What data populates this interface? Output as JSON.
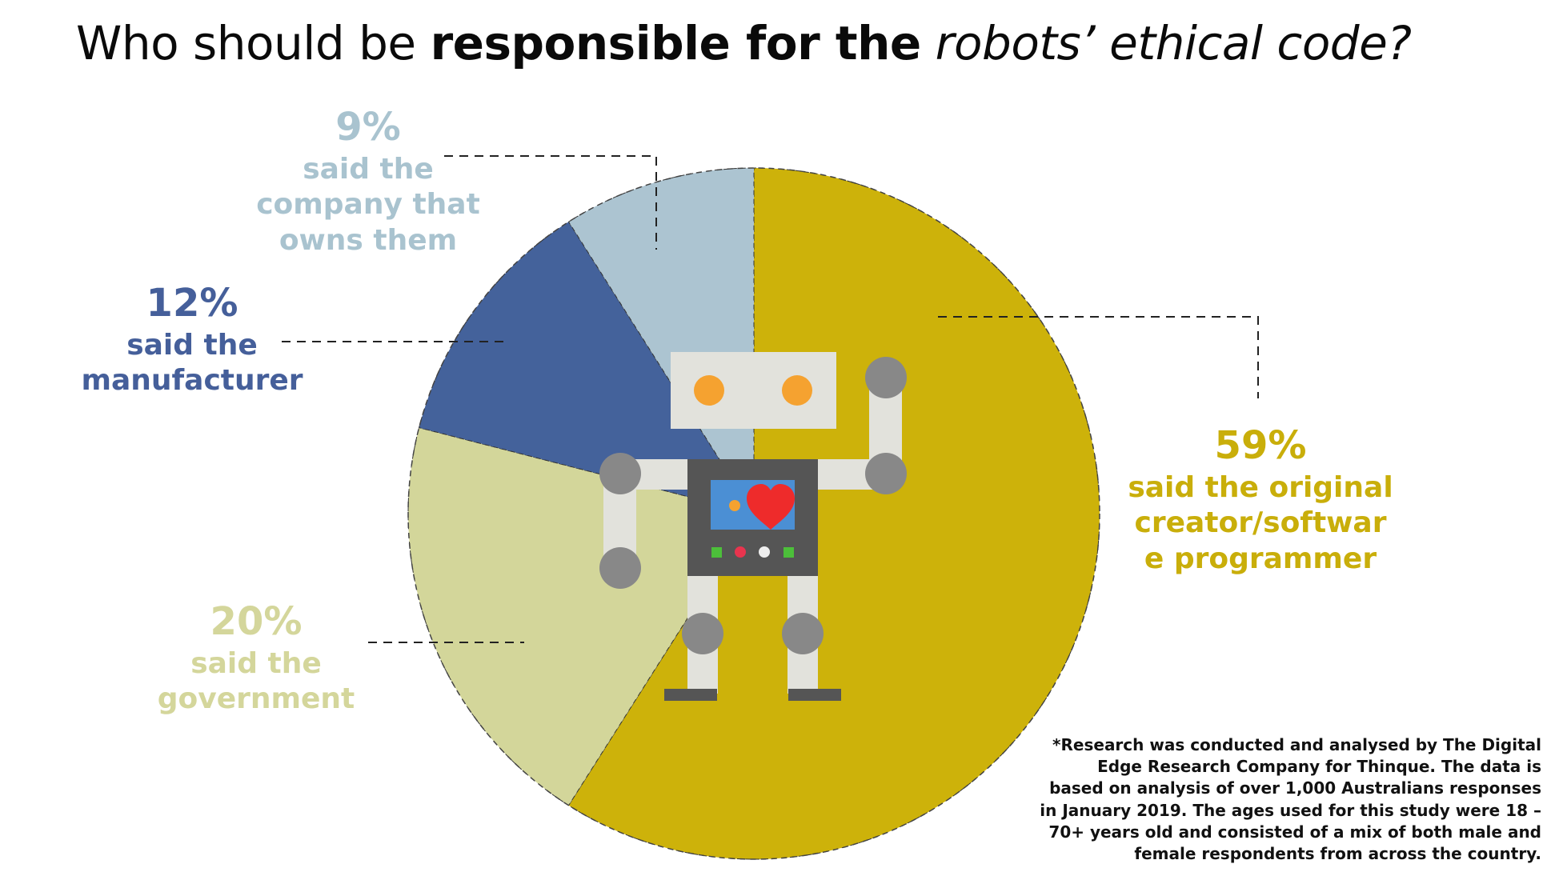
{
  "title": {
    "part1": "Who should be ",
    "part2": "responsible for the",
    "part3": " robots’ ethical code?"
  },
  "chart_data": {
    "type": "pie",
    "title": "Who should be responsible for the robots’ ethical code?",
    "slices": [
      {
        "label": "said the original creator/software programmer",
        "value": 59,
        "display": "59%",
        "color": "#cdb20a"
      },
      {
        "label": "said the government",
        "value": 20,
        "display": "20%",
        "color": "#d3d69a"
      },
      {
        "label": "said the manufacturer",
        "value": 12,
        "display": "12%",
        "color": "#44629b"
      },
      {
        "label": "said the company that owns them",
        "value": 9,
        "display": "9%",
        "color": "#acc4d1"
      }
    ]
  },
  "labels": {
    "s9": {
      "pct": "9%",
      "line1": "said the",
      "line2": "company that",
      "line3": "owns them"
    },
    "s12": {
      "pct": "12%",
      "line1": "said the",
      "line2": "manufacturer"
    },
    "s59": {
      "pct": "59%",
      "line1": "said the original",
      "line2": "creator/softwar",
      "line3": "e programmer"
    },
    "s20": {
      "pct": "20%",
      "line1": "said the",
      "line2": "government"
    }
  },
  "footnote": {
    "line1": "*Research was conducted and analysed by The Digital",
    "line2": "Edge Research Company for Thinque. The data is",
    "line3": "based on analysis of over 1,000 Australians responses",
    "line4": "in January 2019. The ages used for this study were 18 –",
    "line5": "70+ years old and consisted of a mix of both male and",
    "line6": "female respondents from across the country."
  },
  "robot": {
    "head_color": "#e2e2dc",
    "eye_color": "#f5a230",
    "body_color": "#555555",
    "joint_color": "#888888",
    "screen_color": "#4b8fd4",
    "heart_color": "#ee2b2b"
  }
}
